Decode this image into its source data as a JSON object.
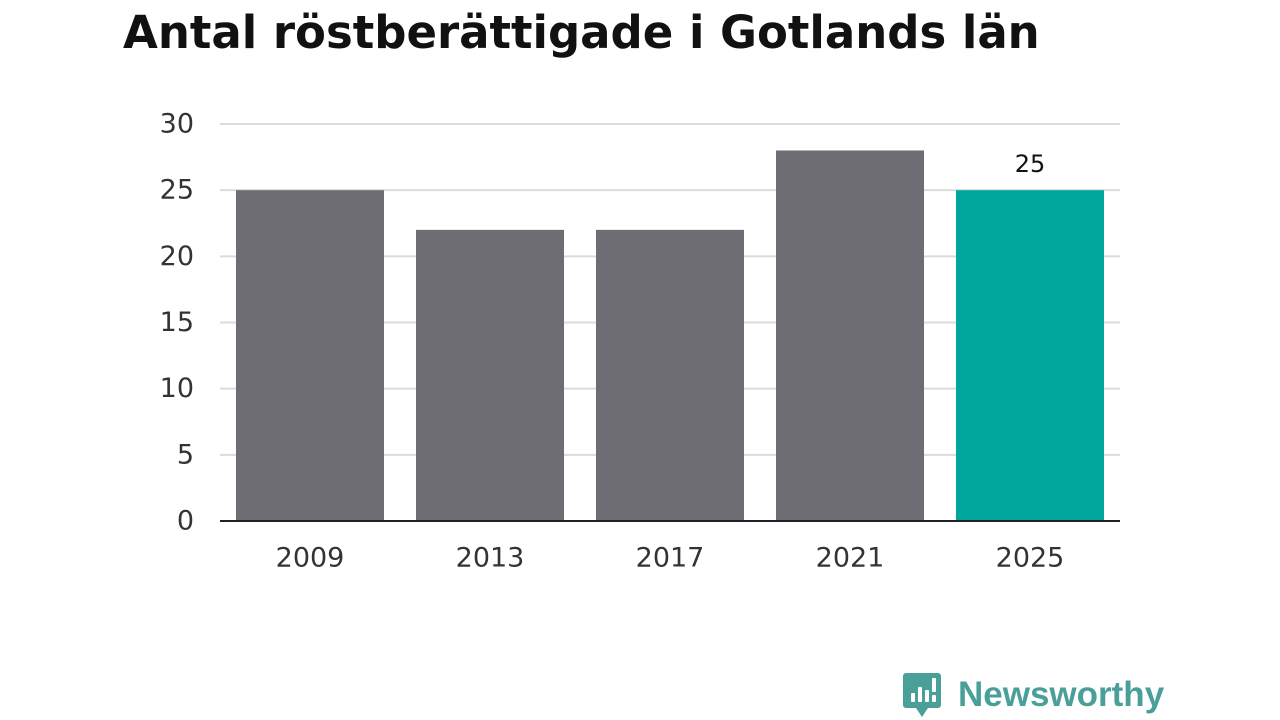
{
  "chart_data": {
    "type": "bar",
    "title": "Antal röstberättigade i Gotlands län",
    "categories": [
      "2009",
      "2013",
      "2017",
      "2021",
      "2025"
    ],
    "values": [
      25,
      22,
      22,
      28,
      25
    ],
    "ylim": [
      0,
      30
    ],
    "yticks": [
      0,
      5,
      10,
      15,
      20,
      25,
      30
    ],
    "grid": true,
    "highlight_index": 4,
    "data_labels": [
      {
        "index": 4,
        "text": "25"
      }
    ],
    "colors": {
      "bar": "#6e6d73",
      "highlight": "#00a59b",
      "grid": "#dcdcdc",
      "axis": "#222222"
    }
  },
  "branding": {
    "name": "Newsworthy",
    "icon": "newsworthy-logo-icon",
    "color": "#4a9f98"
  }
}
